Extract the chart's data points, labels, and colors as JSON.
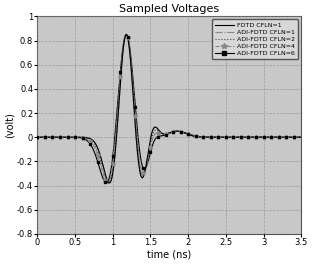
{
  "title": "Sampled Voltages",
  "xlabel": "time (ns)",
  "ylabel": "(volt)",
  "xlim": [
    0,
    3.5
  ],
  "ylim": [
    -0.8,
    1.0
  ],
  "yticks": [
    -0.8,
    -0.6,
    -0.4,
    -0.2,
    0,
    0.2,
    0.4,
    0.6,
    0.8,
    1.0
  ],
  "xticks": [
    0,
    0.5,
    1.0,
    1.5,
    2.0,
    2.5,
    3.0,
    3.5
  ],
  "bg_color": "#c8c8c8",
  "grid_color": "#888888",
  "fig_bg": "#ffffff",
  "lines": [
    {
      "label": "FDTD CFLN=1",
      "color": "#000000",
      "lw": 0.8,
      "ls": "-",
      "marker": "none",
      "ms": 0
    },
    {
      "label": "ADI-FDTD CFLN=1",
      "color": "#888888",
      "lw": 0.8,
      "ls": "--",
      "marker": "none",
      "ms": 0
    },
    {
      "label": "ADI-FDTD CFLN=2",
      "color": "#444444",
      "lw": 0.8,
      "ls": ":",
      "marker": "none",
      "ms": 0
    },
    {
      "label": "ADI-FDTD CFLN=4",
      "color": "#888888",
      "lw": 0.8,
      "ls": "--",
      "marker": "*",
      "ms": 3
    },
    {
      "label": "ADI-FDTD CFLN=6",
      "color": "#000000",
      "lw": 0.8,
      "ls": "-",
      "marker": "s",
      "ms": 2
    }
  ]
}
